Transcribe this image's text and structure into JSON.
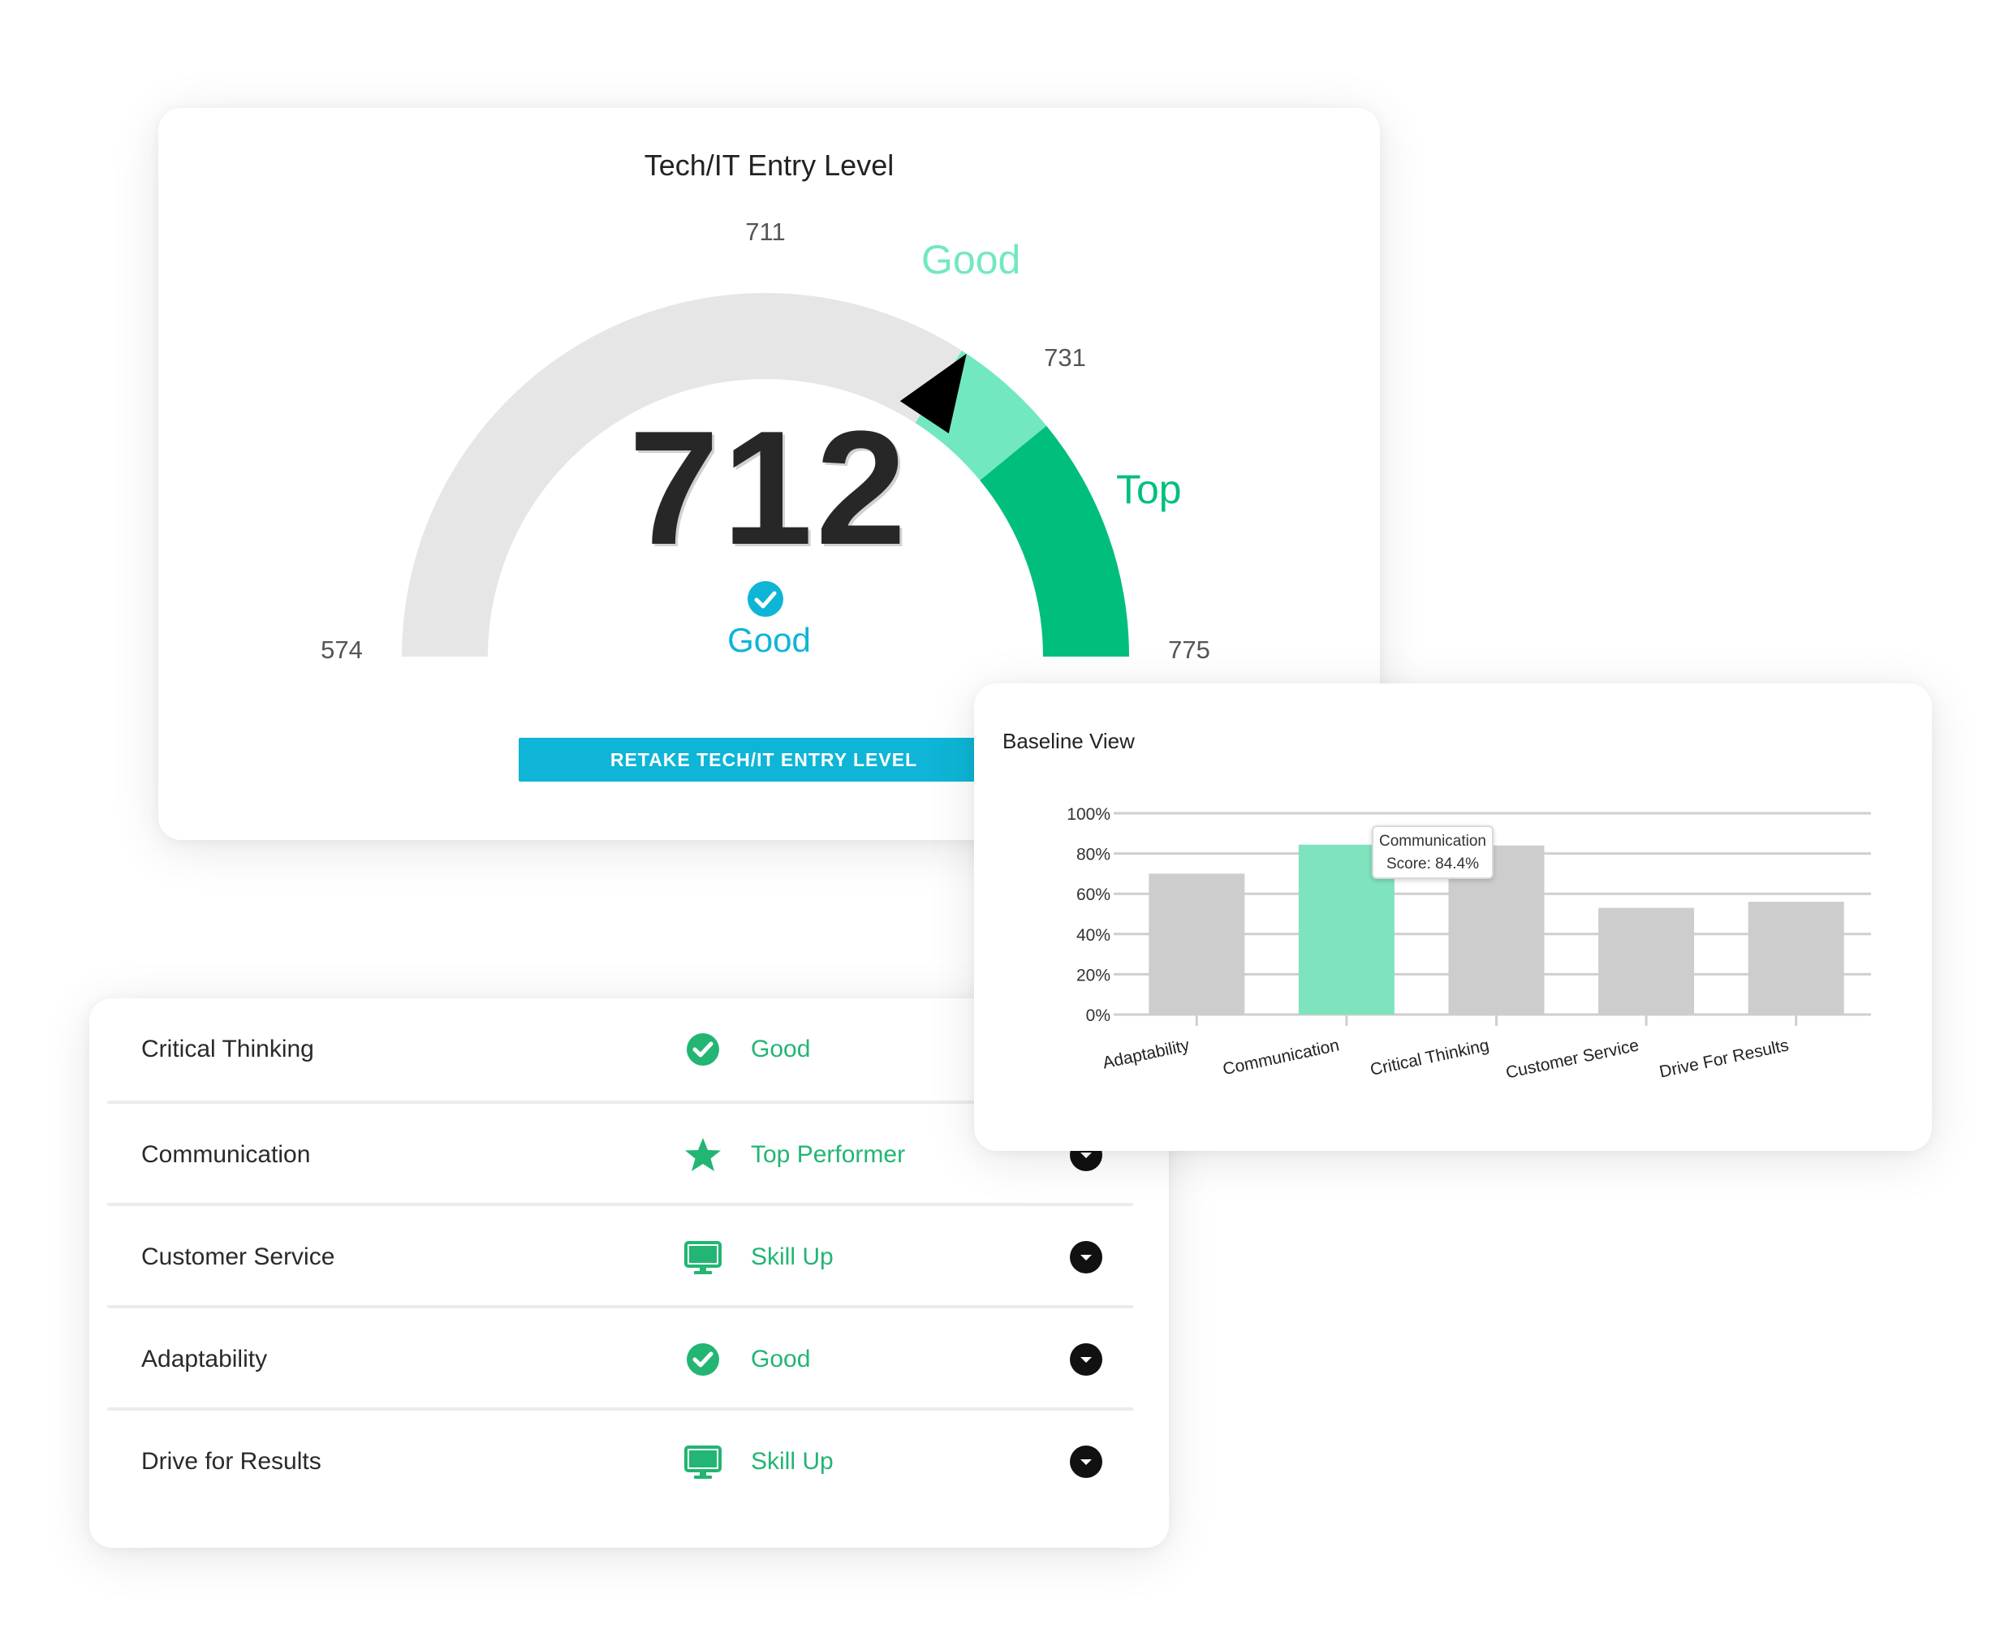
{
  "gauge": {
    "title": "Tech/IT Entry Level",
    "score": "712",
    "status_label": "Good",
    "zone_good_label": "Good",
    "zone_top_label": "Top",
    "tick_min": "574",
    "tick_good_start": "711",
    "tick_top_start": "731",
    "tick_max": "775",
    "range_min": 574,
    "good_start": 711,
    "top_start": 731,
    "range_max": 775,
    "current_score": 712,
    "colors": {
      "base": "#e6e6e6",
      "good": "#72e8c1",
      "top": "#00bf7c",
      "status": "#0eb5d6",
      "needle": "#000000"
    },
    "retake_button": "RETAKE TECH/IT ENTRY LEVEL"
  },
  "skills": [
    {
      "name": "Critical Thinking",
      "status": "Good",
      "icon": "check-circle-icon"
    },
    {
      "name": "Communication",
      "status": "Top Performer",
      "icon": "star-icon"
    },
    {
      "name": "Customer Service",
      "status": "Skill Up",
      "icon": "monitor-icon"
    },
    {
      "name": "Adaptability",
      "status": "Good",
      "icon": "check-circle-icon"
    },
    {
      "name": "Drive for Results",
      "status": "Skill Up",
      "icon": "monitor-icon"
    }
  ],
  "chart_data": {
    "type": "bar",
    "title": "Baseline View",
    "categories": [
      "Adaptability",
      "Communication",
      "Critical Thinking",
      "Customer Service",
      "Drive For Results"
    ],
    "values": [
      70,
      84.4,
      84,
      53,
      56
    ],
    "highlight_index": 1,
    "ylim": [
      0,
      100
    ],
    "y_ticks": [
      "0%",
      "20%",
      "40%",
      "60%",
      "80%",
      "100%"
    ],
    "grid": true,
    "colors": {
      "bar": "#cdcdcd",
      "highlight": "#7fe3be",
      "grid": "#cfcfcf"
    },
    "tooltip": {
      "line1": "Communication",
      "line2": "Score: 84.4%"
    }
  }
}
